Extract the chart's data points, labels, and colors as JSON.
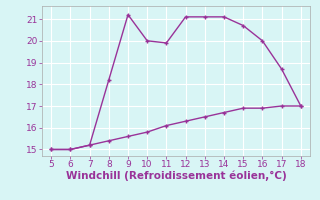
{
  "line1_x": [
    5,
    6,
    7,
    8,
    9,
    10,
    11,
    12,
    13,
    14,
    15,
    16,
    17,
    18
  ],
  "line1_y": [
    15.0,
    15.0,
    15.2,
    18.2,
    21.2,
    20.0,
    19.9,
    21.1,
    21.1,
    21.1,
    20.7,
    20.0,
    18.7,
    17.0
  ],
  "line2_x": [
    5,
    6,
    7,
    8,
    9,
    10,
    11,
    12,
    13,
    14,
    15,
    16,
    17,
    18
  ],
  "line2_y": [
    15.0,
    15.0,
    15.2,
    15.4,
    15.6,
    15.8,
    16.1,
    16.3,
    16.5,
    16.7,
    16.9,
    16.9,
    17.0,
    17.0
  ],
  "line_color": "#993399",
  "bg_color": "#d8f5f5",
  "grid_color": "#ffffff",
  "xlabel": "Windchill (Refroidissement éolien,°C)",
  "xlim": [
    4.5,
    18.5
  ],
  "ylim": [
    14.7,
    21.6
  ],
  "xticks": [
    5,
    6,
    7,
    8,
    9,
    10,
    11,
    12,
    13,
    14,
    15,
    16,
    17,
    18
  ],
  "yticks": [
    15,
    16,
    17,
    18,
    19,
    20,
    21
  ],
  "tick_color": "#993399",
  "label_color": "#993399",
  "spine_color": "#aaaaaa",
  "tick_fontsize": 6.5,
  "xlabel_fontsize": 7.5
}
